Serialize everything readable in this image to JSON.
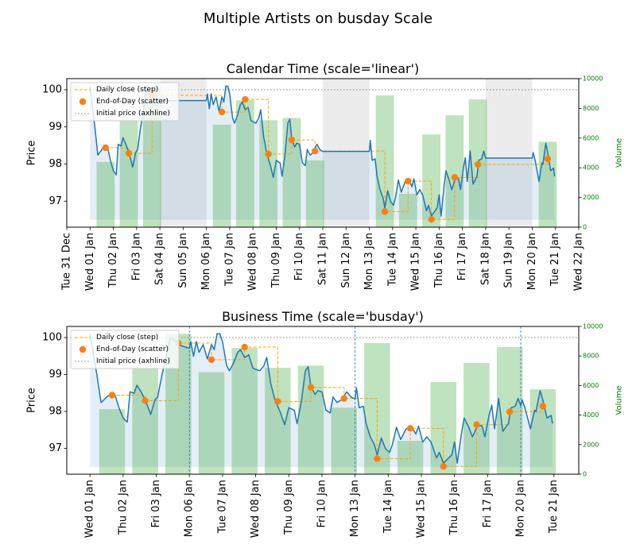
{
  "figure": {
    "title": "Multiple Artists on busday Scale"
  },
  "chart_data": {
    "type": "line",
    "colors": {
      "price": "#1f77b4",
      "fill": "#1f77b4",
      "eod": "#ff7f0e",
      "step": "#ffa500",
      "volume": "#2ca02c",
      "axhline": "#808080",
      "weekend": "#808080",
      "vline": "#1f77b4",
      "volume_axis": "#008000"
    },
    "series": {
      "price": {
        "points": [
          [
            "01 Jan 00:00",
            100.1
          ],
          [
            "01 Jan 05:00",
            98.99
          ],
          [
            "01 Jan 08:00",
            98.24
          ],
          [
            "01 Jan 13:00",
            98.42
          ],
          [
            "01 Jan 18:00",
            98.46
          ],
          [
            "01 Jan 21:00",
            98.1
          ],
          [
            "02 Jan 00:00",
            97.82
          ],
          [
            "02 Jan 03:00",
            97.71
          ],
          [
            "02 Jan 05:00",
            98.53
          ],
          [
            "02 Jan 08:00",
            98.49
          ],
          [
            "02 Jan 10:00",
            98.71
          ],
          [
            "02 Jan 13:00",
            98.53
          ],
          [
            "02 Jan 16:00",
            98.31
          ],
          [
            "02 Jan 20:00",
            97.92
          ],
          [
            "02 Jan 23:00",
            98.31
          ],
          [
            "03 Jan 01:00",
            98.39
          ],
          [
            "03 Jan 04:00",
            98.96
          ],
          [
            "03 Jan 07:00",
            99.46
          ],
          [
            "03 Jan 10:00",
            99.96
          ],
          [
            "03 Jan 12:00",
            99.96
          ],
          [
            "03 Jan 16:00",
            99.8
          ],
          [
            "04 Jan 00:00",
            99.71
          ],
          [
            "06 Jan 00:00",
            99.71
          ],
          [
            "06 Jan 01:00",
            99.89
          ],
          [
            "06 Jan 03:00",
            99.49
          ],
          [
            "06 Jan 05:00",
            99.89
          ],
          [
            "06 Jan 07:00",
            99.6
          ],
          [
            "06 Jan 10:00",
            99.81
          ],
          [
            "06 Jan 13:00",
            99.42
          ],
          [
            "06 Jan 16:00",
            99.81
          ],
          [
            "06 Jan 18:00",
            99.67
          ],
          [
            "06 Jan 20:00",
            100.1
          ],
          [
            "06 Jan 22:00",
            100.1
          ],
          [
            "07 Jan 00:00",
            99.89
          ],
          [
            "07 Jan 03:00",
            99.24
          ],
          [
            "07 Jan 05:00",
            99.1
          ],
          [
            "07 Jan 08:00",
            99.31
          ],
          [
            "07 Jan 11:00",
            99.6
          ],
          [
            "07 Jan 13:00",
            99.67
          ],
          [
            "07 Jan 16:00",
            99.46
          ],
          [
            "07 Jan 19:00",
            99.53
          ],
          [
            "07 Jan 22:00",
            99.17
          ],
          [
            "08 Jan 00:00",
            99.14
          ],
          [
            "08 Jan 03:00",
            99.1
          ],
          [
            "08 Jan 06:00",
            99.24
          ],
          [
            "08 Jan 08:00",
            99.46
          ],
          [
            "08 Jan 11:00",
            98.74
          ],
          [
            "08 Jan 14:00",
            98.31
          ],
          [
            "08 Jan 18:00",
            97.96
          ],
          [
            "08 Jan 21:00",
            97.64
          ],
          [
            "09 Jan 00:00",
            98.1
          ],
          [
            "09 Jan 04:00",
            98.03
          ],
          [
            "09 Jan 06:00",
            97.67
          ],
          [
            "09 Jan 09:00",
            98.24
          ],
          [
            "09 Jan 12:00",
            99.1
          ],
          [
            "09 Jan 14:00",
            99.21
          ],
          [
            "09 Jan 16:00",
            98.67
          ],
          [
            "09 Jan 19:00",
            98.46
          ],
          [
            "09 Jan 21:00",
            98.56
          ],
          [
            "10 Jan 00:00",
            98.53
          ],
          [
            "10 Jan 03:00",
            98.03
          ],
          [
            "10 Jan 06:00",
            97.96
          ],
          [
            "10 Jan 08:00",
            98.39
          ],
          [
            "10 Jan 11:00",
            98.24
          ],
          [
            "10 Jan 14:00",
            98.31
          ],
          [
            "10 Jan 18:00",
            98.53
          ],
          [
            "10 Jan 21:00",
            98.39
          ],
          [
            "11 Jan 00:00",
            98.34
          ],
          [
            "13 Jan 00:00",
            98.34
          ],
          [
            "13 Jan 01:00",
            98.64
          ],
          [
            "13 Jan 03:00",
            98.1
          ],
          [
            "13 Jan 06:00",
            98.14
          ],
          [
            "13 Jan 08:00",
            97.67
          ],
          [
            "13 Jan 11:00",
            97.31
          ],
          [
            "13 Jan 14:00",
            97.1
          ],
          [
            "13 Jan 16:00",
            96.82
          ],
          [
            "13 Jan 19:00",
            97.28
          ],
          [
            "13 Jan 22:00",
            96.99
          ],
          [
            "14 Jan 01:00",
            96.89
          ],
          [
            "14 Jan 03:00",
            97.1
          ],
          [
            "14 Jan 06:00",
            97.57
          ],
          [
            "14 Jan 09:00",
            97.24
          ],
          [
            "14 Jan 13:00",
            97.53
          ],
          [
            "14 Jan 17:00",
            97.57
          ],
          [
            "14 Jan 20:00",
            97.39
          ],
          [
            "14 Jan 22:00",
            97.6
          ],
          [
            "15 Jan 01:00",
            97.17
          ],
          [
            "15 Jan 04:00",
            97.31
          ],
          [
            "15 Jan 07:00",
            97.17
          ],
          [
            "15 Jan 11:00",
            96.74
          ],
          [
            "15 Jan 13:00",
            96.89
          ],
          [
            "15 Jan 16:00",
            96.6
          ],
          [
            "15 Jan 19:00",
            96.71
          ],
          [
            "15 Jan 22:00",
            96.82
          ],
          [
            "16 Jan 00:00",
            97.17
          ],
          [
            "16 Jan 02:00",
            96.6
          ],
          [
            "16 Jan 05:00",
            97.39
          ],
          [
            "16 Jan 07:00",
            97.82
          ],
          [
            "16 Jan 10:00",
            97.6
          ],
          [
            "16 Jan 13:00",
            97.31
          ],
          [
            "16 Jan 17:00",
            97.64
          ],
          [
            "16 Jan 20:00",
            97.6
          ],
          [
            "16 Jan 22:00",
            97.31
          ],
          [
            "17 Jan 01:00",
            97.89
          ],
          [
            "17 Jan 03:00",
            98.17
          ],
          [
            "17 Jan 05:00",
            97.53
          ],
          [
            "17 Jan 08:00",
            98.35
          ],
          [
            "17 Jan 11:00",
            97.46
          ],
          [
            "17 Jan 15:00",
            97.67
          ],
          [
            "17 Jan 17:00",
            98.1
          ],
          [
            "17 Jan 20:00",
            98.14
          ],
          [
            "17 Jan 22:00",
            98.35
          ],
          [
            "18 Jan 00:00",
            98.16
          ],
          [
            "20 Jan 00:00",
            98.16
          ],
          [
            "20 Jan 01:00",
            98.31
          ],
          [
            "20 Jan 03:00",
            98.1
          ],
          [
            "20 Jan 07:00",
            97.53
          ],
          [
            "20 Jan 10:00",
            98.03
          ],
          [
            "20 Jan 11:00",
            97.99
          ],
          [
            "20 Jan 14:00",
            98.56
          ],
          [
            "20 Jan 16:00",
            98.31
          ],
          [
            "20 Jan 19:00",
            97.82
          ],
          [
            "20 Jan 22:00",
            97.89
          ],
          [
            "20 Jan 23:00",
            97.67
          ]
        ]
      },
      "fill_between": {
        "baseline": 96.5
      },
      "end_of_day": {
        "name": "End-of-Day (scatter)",
        "points": [
          [
            "01 Jan 16:00",
            98.44
          ],
          [
            "02 Jan 16:00",
            98.29
          ],
          [
            "03 Jan 16:00",
            99.85
          ],
          [
            "06 Jan 16:00",
            99.4
          ],
          [
            "07 Jan 16:00",
            99.74
          ],
          [
            "08 Jan 16:00",
            98.27
          ],
          [
            "09 Jan 16:00",
            98.65
          ],
          [
            "10 Jan 16:00",
            98.35
          ],
          [
            "13 Jan 16:00",
            96.72
          ],
          [
            "14 Jan 16:00",
            97.54
          ],
          [
            "15 Jan 16:00",
            96.51
          ],
          [
            "16 Jan 16:00",
            97.64
          ],
          [
            "17 Jan 16:00",
            97.99
          ],
          [
            "20 Jan 16:00",
            98.14
          ]
        ]
      },
      "daily_close_step": {
        "name": "Daily close (step)",
        "where": "post"
      },
      "initial_price": {
        "name": "Initial price (axhline)",
        "value": 100
      },
      "volume": {
        "bar_width_days": 0.78,
        "bars": [
          [
            "01 Jan 16:00",
            4400
          ],
          [
            "02 Jan 16:00",
            7200
          ],
          [
            "03 Jan 16:00",
            9500
          ],
          [
            "06 Jan 16:00",
            6900
          ],
          [
            "07 Jan 16:00",
            8550
          ],
          [
            "08 Jan 16:00",
            7200
          ],
          [
            "09 Jan 16:00",
            7350
          ],
          [
            "10 Jan 16:00",
            4500
          ],
          [
            "13 Jan 16:00",
            8870
          ],
          [
            "14 Jan 16:00",
            2250
          ],
          [
            "15 Jan 16:00",
            6240
          ],
          [
            "16 Jan 16:00",
            7530
          ],
          [
            "17 Jan 16:00",
            8600
          ],
          [
            "20 Jan 16:00",
            5750
          ]
        ]
      }
    },
    "panels": [
      {
        "title": "Calendar Time (scale='linear')",
        "xscale": "linear",
        "ylabel": "Price",
        "ylabel_right": "Volume",
        "ylim": [
          96.3,
          100.3
        ],
        "ylim_right": [
          0,
          10000
        ],
        "xlim": [
          "31 Dec 00:00",
          "22 Jan 00:00"
        ],
        "grid": false,
        "legend_placement": "upper-left",
        "weekend_shading": [
          [
            "04 Jan 00:00",
            "06 Jan 00:00"
          ],
          [
            "11 Jan 00:00",
            "13 Jan 00:00"
          ],
          [
            "18 Jan 00:00",
            "20 Jan 00:00"
          ]
        ],
        "vlines": [],
        "yticks": [
          "97",
          "98",
          "99",
          "100"
        ],
        "yticks_right": [
          "0",
          "2000",
          "4000",
          "6000",
          "8000",
          "10000"
        ],
        "xticks": [
          "Tue 31 Dec",
          "Wed 01 Jan",
          "Thu 02 Jan",
          "Fri 03 Jan",
          "Sat 04 Jan",
          "Sun 05 Jan",
          "Mon 06 Jan",
          "Tue 07 Jan",
          "Wed 08 Jan",
          "Thu 09 Jan",
          "Fri 10 Jan",
          "Sat 11 Jan",
          "Sun 12 Jan",
          "Mon 13 Jan",
          "Tue 14 Jan",
          "Wed 15 Jan",
          "Thu 16 Jan",
          "Fri 17 Jan",
          "Sat 18 Jan",
          "Sun 19 Jan",
          "Mon 20 Jan",
          "Tue 21 Jan",
          "Wed 22 Jan"
        ]
      },
      {
        "title": "Business Time (scale='busday')",
        "xscale": "busday",
        "ylabel": "Price",
        "ylabel_right": "Volume",
        "ylim": [
          96.3,
          100.3
        ],
        "ylim_right": [
          0,
          10000
        ],
        "grid": false,
        "legend_placement": "upper-left",
        "weekend_shading": [],
        "vlines": [
          "06 Jan 00:00",
          "13 Jan 00:00",
          "20 Jan 00:00"
        ],
        "yticks": [
          "97",
          "98",
          "99",
          "100"
        ],
        "yticks_right": [
          "0",
          "2000",
          "4000",
          "6000",
          "8000",
          "10000"
        ],
        "xticks": [
          "Wed 01 Jan",
          "Thu 02 Jan",
          "Fri 03 Jan",
          "Mon 06 Jan",
          "Tue 07 Jan",
          "Wed 08 Jan",
          "Thu 09 Jan",
          "Fri 10 Jan",
          "Mon 13 Jan",
          "Tue 14 Jan",
          "Wed 15 Jan",
          "Thu 16 Jan",
          "Fri 17 Jan",
          "Mon 20 Jan",
          "Tue 21 Jan"
        ]
      }
    ]
  }
}
